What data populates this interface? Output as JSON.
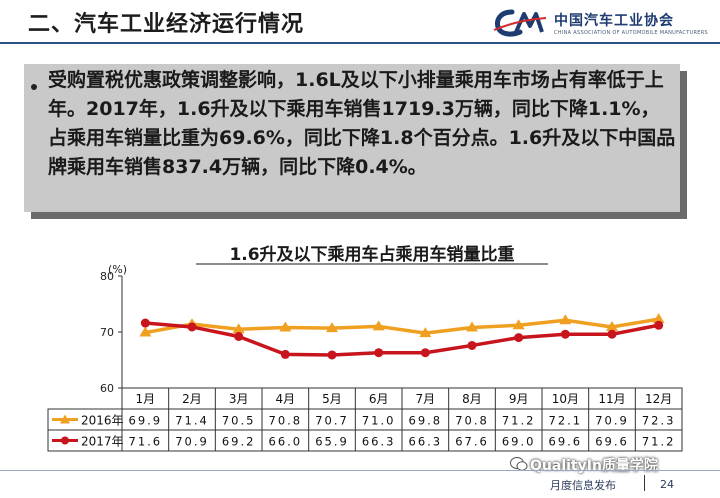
{
  "slide": {
    "title": "二、汽车工业经济运行情况",
    "logo_cn": "中国汽车工业协会",
    "logo_en": "CHINA ASSOCIATION OF AUTOMOBILE MANUFACTURERS",
    "note": "受购置税优惠政策调整影响，1.6L及以下小排量乘用车市场占有率低于上年。2017年，1.6升及以下乘用车销售1719.3万辆，同比下降1.1%，占乘用车销量比重为69.6%，同比下降1.8个百分点。1.6升及以下中国品牌乘用车销售837.4万辆，同比下降0.4%。",
    "watermark": "QualityIn质量学院",
    "footer_label": "月度信息发布",
    "page_number": "24",
    "colors": {
      "rule": "#2c4f86",
      "box": "#c9c9c9",
      "shadow": "#6a6a6a"
    }
  },
  "chart_data": {
    "type": "line",
    "title": "1.6升及以下乘用车占乘用车销量比重",
    "ylabel": "(%)",
    "ylim": [
      60,
      80
    ],
    "yticks": [
      60,
      70,
      80
    ],
    "grid": false,
    "categories": [
      "1月",
      "2月",
      "3月",
      "4月",
      "5月",
      "6月",
      "7月",
      "8月",
      "9月",
      "10月",
      "11月",
      "12月"
    ],
    "series": [
      {
        "name": "2016年",
        "color": "#f0a020",
        "marker": "triangle",
        "values": [
          69.9,
          71.4,
          70.5,
          70.8,
          70.7,
          71.0,
          69.8,
          70.8,
          71.2,
          72.1,
          70.9,
          72.3
        ],
        "labels": [
          "69.9",
          "71.4",
          "70.5",
          "70.8",
          "70.7",
          "71.0",
          "69.8",
          "70.8",
          "71.2",
          "72.1",
          "70.9",
          "72.3"
        ]
      },
      {
        "name": "2017年",
        "color": "#c8141c",
        "marker": "circle",
        "values": [
          71.6,
          70.9,
          69.2,
          66.0,
          65.9,
          66.3,
          66.3,
          67.6,
          69.0,
          69.6,
          69.6,
          71.2
        ],
        "labels": [
          "71.6",
          "70.9",
          "69.2",
          "66.0",
          "65.9",
          "66.3",
          "66.3",
          "67.6",
          "69.0",
          "69.6",
          "69.6",
          "71.2"
        ]
      }
    ]
  }
}
